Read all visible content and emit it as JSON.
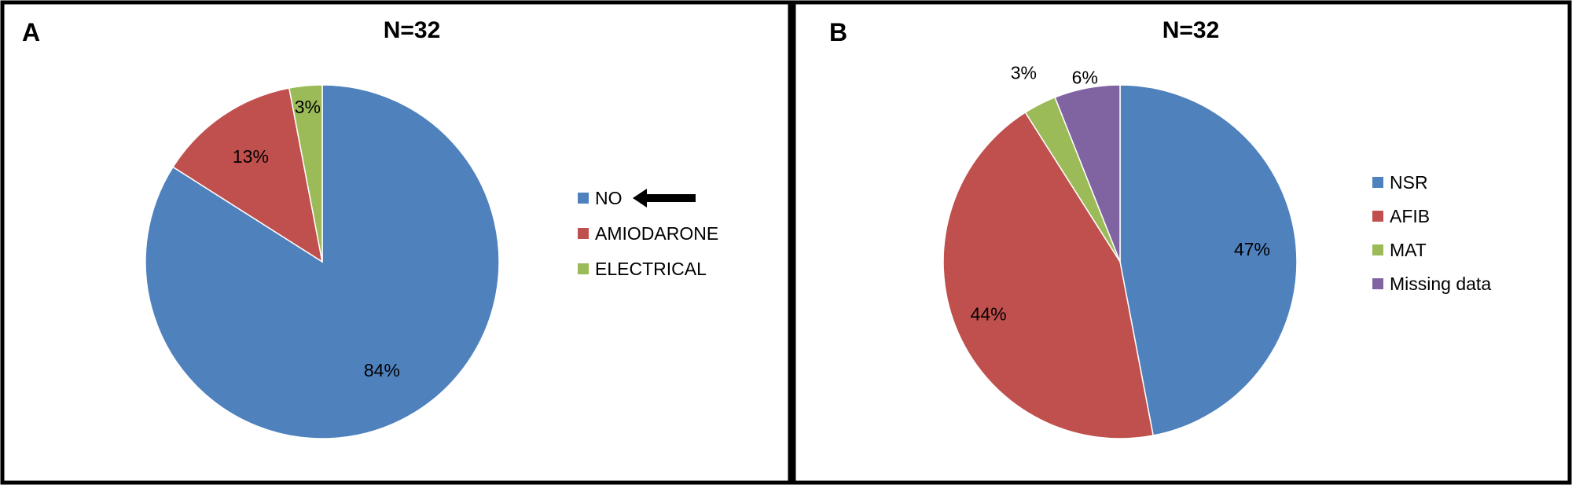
{
  "chart_data": [
    {
      "type": "pie",
      "panel": "A",
      "title": "N=32",
      "categories": [
        "NO",
        "AMIODARONE",
        "ELECTRICAL"
      ],
      "values": [
        84,
        13,
        3
      ],
      "labels": [
        "84%",
        "13%",
        "3%"
      ],
      "colors": [
        "#4F81BD",
        "#C0504D",
        "#9BBB59"
      ],
      "legend_position": "right",
      "annotation": {
        "type": "arrow",
        "points_to": "NO",
        "icon": "left-arrow-icon"
      }
    },
    {
      "type": "pie",
      "panel": "B",
      "title": "N=32",
      "categories": [
        "NSR",
        "AFIB",
        "MAT",
        "Missing data"
      ],
      "values": [
        47,
        44,
        3,
        6
      ],
      "labels": [
        "47%",
        "44%",
        "3%",
        "6%"
      ],
      "colors": [
        "#4F81BD",
        "#C0504D",
        "#9BBB59",
        "#8064A2"
      ],
      "legend_position": "right"
    }
  ]
}
